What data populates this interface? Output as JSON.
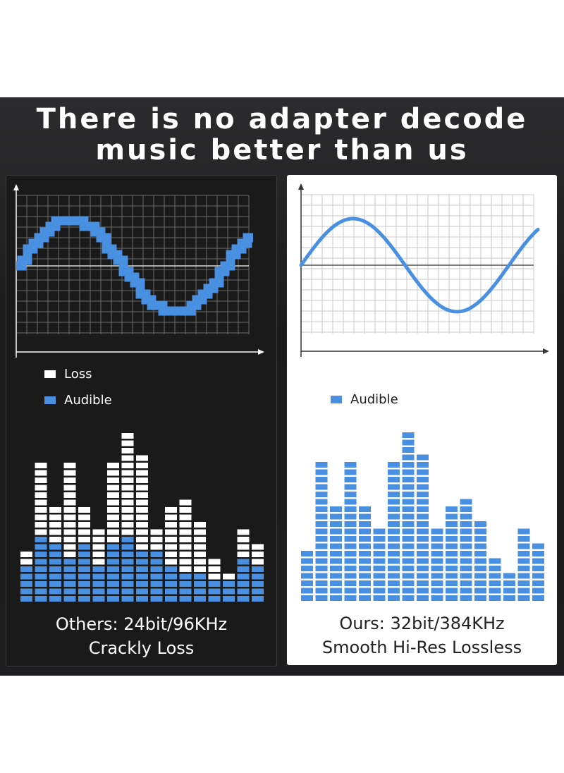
{
  "header": {
    "title_lines": [
      "There is no adapter decode",
      "music better than us"
    ]
  },
  "left_panel": {
    "legend": [
      "Loss",
      "Audible"
    ],
    "caption_lines": [
      "Others: 24bit/96KHz",
      "Crackly Loss"
    ]
  },
  "right_panel": {
    "legend": [
      "Audible"
    ],
    "caption_lines": [
      "Ours: 32bit/384KHz",
      "Smooth Hi-Res Lossless"
    ]
  }
}
